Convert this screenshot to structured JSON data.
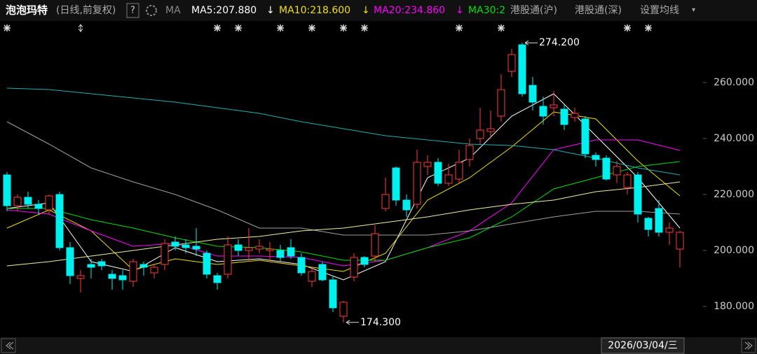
{
  "header": {
    "title": "泡泡玛特",
    "subtitle": "(日线,前复权)",
    "help": "?",
    "ma_label": "MA",
    "links": [
      "港股通(沪)",
      "港股通(深)"
    ],
    "settings": "设置均线",
    "settings_caret": "▾"
  },
  "chart_data": {
    "type": "candlestick",
    "ylim": [
      169.5,
      282
    ],
    "yticks": [
      {
        "value": 180,
        "label": "180.000"
      },
      {
        "value": 200,
        "label": "200.000"
      },
      {
        "value": 220,
        "label": "220.000"
      },
      {
        "value": 240,
        "label": "240.000"
      },
      {
        "value": 260,
        "label": "260.000"
      }
    ],
    "up_color": "#ff3b3b",
    "down_color": "#00f0f0",
    "open": [
      227,
      216,
      219,
      216.5,
      214.5,
      220,
      201,
      190,
      195,
      196,
      191.5,
      191,
      189,
      195,
      192,
      195,
      203,
      202,
      201.5,
      199,
      191,
      191.5,
      202,
      200,
      200.5,
      200,
      200,
      201,
      197.5,
      189,
      195,
      189.5,
      176.5,
      190.5,
      197.5,
      198,
      215,
      229.5,
      218,
      216.5,
      230,
      231.5,
      224,
      225.5,
      232.5,
      240,
      242.5,
      248,
      264,
      273.5,
      259,
      251.5,
      251,
      250.5,
      247.5,
      247,
      234,
      233,
      227,
      222.5,
      227,
      211.5,
      215,
      206.5,
      200.5
    ],
    "high": [
      228,
      220,
      221,
      218,
      220,
      221,
      203,
      193,
      197,
      197,
      193,
      193,
      197,
      196,
      195,
      204,
      205,
      204,
      208,
      200,
      192,
      205,
      204,
      208,
      204,
      203,
      202,
      204,
      199,
      194,
      196,
      191,
      182,
      199,
      198,
      209,
      226,
      230,
      220,
      236,
      234,
      233,
      231,
      236,
      240,
      251,
      250,
      263,
      272,
      274.2,
      262,
      255,
      257,
      252,
      251,
      248,
      235,
      234,
      232,
      228,
      228,
      212,
      218,
      210,
      207
    ],
    "low": [
      214,
      214,
      215,
      213,
      213,
      200,
      188,
      185,
      190,
      193,
      186,
      186,
      187,
      191,
      190,
      193,
      200,
      199,
      198,
      190,
      186,
      190,
      198,
      196,
      199,
      196,
      196,
      197,
      191,
      187,
      189,
      178,
      174.3,
      189,
      194,
      196,
      214,
      216,
      212,
      215,
      227,
      223,
      223,
      224,
      230,
      238,
      240,
      246,
      262,
      255,
      250,
      245,
      248,
      243,
      246,
      233,
      230,
      225,
      224,
      220,
      210,
      205,
      205,
      202,
      194
    ],
    "close": [
      216,
      219,
      216.5,
      215,
      219.5,
      201,
      191,
      191,
      194,
      194.5,
      190,
      189.5,
      196,
      194,
      194,
      202.5,
      201.5,
      201,
      200.5,
      191.5,
      188.5,
      202,
      200,
      201,
      201.5,
      200.5,
      197.5,
      198,
      192,
      192.5,
      189.5,
      179.5,
      181.5,
      197.5,
      195,
      206,
      220,
      218,
      214.5,
      231.5,
      231.5,
      224,
      227,
      231.5,
      237.5,
      243,
      243.5,
      257.5,
      270,
      256,
      253,
      248,
      252,
      245,
      249,
      234.5,
      232.5,
      225.5,
      230,
      227,
      213,
      207.5,
      206.5,
      208,
      206.5
    ],
    "annotations": [
      {
        "value": 274.2,
        "label": "274.200"
      },
      {
        "value": 174.3,
        "label": "174.300"
      }
    ],
    "cursor_date": "2026/03/04/三",
    "series": [
      {
        "name": "MA5:207.880",
        "trend": "↓",
        "color": "#ffffff",
        "x": [
          0,
          4,
          8,
          12,
          16,
          20,
          24,
          28,
          32,
          36,
          40,
          44,
          48,
          52,
          56,
          60,
          64
        ],
        "values": [
          215,
          217,
          196,
          192.5,
          201,
          196,
          197,
          195,
          189.5,
          196,
          226,
          233,
          248,
          256,
          241,
          226,
          208
        ]
      },
      {
        "name": "MA10:218.600",
        "trend": "↓",
        "color": "#f0e000",
        "x": [
          0,
          4,
          8,
          12,
          16,
          20,
          24,
          28,
          32,
          36,
          40,
          44,
          48,
          52,
          56,
          60,
          64
        ],
        "values": [
          208,
          214.5,
          207,
          193,
          197,
          195,
          196.5,
          194.5,
          192.5,
          199,
          218,
          226,
          237,
          249.5,
          247,
          232,
          219.5
        ]
      },
      {
        "name": "MA20:234.860",
        "trend": "↓",
        "color": "#ff00ff",
        "x": [
          0,
          4,
          8,
          12,
          16,
          20,
          24,
          28,
          32,
          36,
          40,
          44,
          48,
          52,
          56,
          60,
          64
        ],
        "values": [
          214.5,
          213,
          207,
          201.5,
          202.5,
          198,
          198,
          197.5,
          194.5,
          196.5,
          201,
          207,
          217,
          236,
          239.5,
          239.5,
          235.75
        ]
      },
      {
        "name": "MA30:2",
        "color": "#00e000",
        "x": [
          0,
          4,
          8,
          12,
          16,
          20,
          24,
          28,
          32,
          36,
          40,
          44,
          48,
          52,
          56,
          60,
          64
        ],
        "values": [
          215,
          215,
          211,
          208,
          204.5,
          201.5,
          201,
          199.5,
          196.5,
          196.5,
          201,
          204.5,
          212,
          222,
          226,
          230,
          231.75
        ]
      },
      {
        "color": "#a0a0a0",
        "x": [
          0,
          4,
          8,
          12,
          16,
          20,
          24,
          28,
          32,
          36,
          40,
          44,
          48,
          52,
          56,
          60,
          64
        ],
        "values": [
          246,
          238,
          229.5,
          224.5,
          220,
          214.5,
          208,
          208,
          205.5,
          205.5,
          205.5,
          207,
          209.5,
          212,
          214,
          214,
          213
        ]
      },
      {
        "color": "#20b0b0",
        "x": [
          0,
          4,
          8,
          12,
          16,
          20,
          24,
          28,
          32,
          36,
          40,
          44,
          48,
          52,
          56,
          60,
          64
        ],
        "values": [
          258,
          257.5,
          256,
          254.5,
          253,
          251,
          249,
          246,
          243.5,
          241,
          239.5,
          238,
          237.5,
          236,
          233,
          229.5,
          227
        ]
      },
      {
        "color": "#f0f0a0",
        "x": [
          0,
          4,
          8,
          12,
          16,
          20,
          24,
          28,
          32,
          36,
          40,
          44,
          48,
          52,
          56,
          60,
          64
        ],
        "values": [
          194.5,
          196,
          198,
          200,
          202,
          204,
          205,
          207,
          208,
          210,
          212,
          214.5,
          216.5,
          218,
          221,
          222.5,
          224.5
        ]
      }
    ]
  }
}
